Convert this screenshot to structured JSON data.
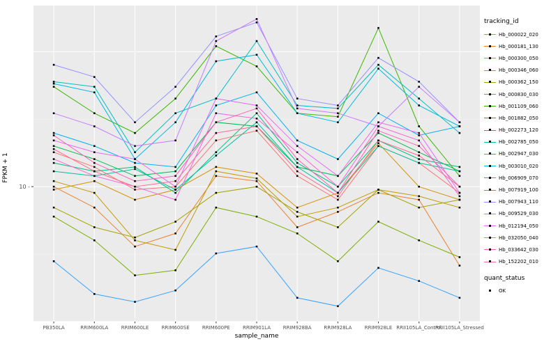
{
  "figure": {
    "x_axis_title": "sample_name",
    "y_axis_title": "FPKM + 1"
  },
  "legend": {
    "tracking_id_title": "tracking_id",
    "quant_status_title": "quant_status",
    "quant_status_items": [
      {
        "label": "OK",
        "shape": "black-square"
      }
    ]
  },
  "chart_data": {
    "type": "line",
    "title": "",
    "xlabel": "sample_name",
    "ylabel": "FPKM + 1",
    "y_scale": "log10",
    "ylim": [
      1,
      220
    ],
    "y_ticks": [
      10
    ],
    "major_gridlines": [
      1,
      10,
      100
    ],
    "minor_gridlines": [
      3.162,
      31.62
    ],
    "grid": true,
    "panel_bg": "#EBEBEB",
    "grid_color": "#FFFFFF",
    "point_color": "#000000",
    "legend_position": "right",
    "categories": [
      "PB350LA",
      "RRIM600LA",
      "RRIM600LE",
      "RRIM600SE",
      "RRIM600PE",
      "RRIM901LA",
      "RRIM928BA",
      "RRIM928LA",
      "RRIM928LE",
      "RRII105LA_Control",
      "RRII105LA_Stressed"
    ],
    "series": [
      {
        "name": "Hb_000022_020",
        "color": "#F8766D",
        "values": [
          18,
          14,
          9.5,
          10,
          22,
          26,
          12,
          8,
          20,
          15,
          9
        ]
      },
      {
        "name": "Hb_000181_130",
        "color": "#EA8331",
        "values": [
          10,
          7,
          3.6,
          4.5,
          12,
          11,
          5,
          6.5,
          9,
          8,
          2.6
        ]
      },
      {
        "name": "Hb_000300_050",
        "color": "#D89000",
        "values": [
          9.5,
          11,
          8,
          9.5,
          14,
          12.5,
          7,
          9,
          21,
          10,
          8
        ]
      },
      {
        "name": "Hb_000346_060",
        "color": "#C09B00",
        "values": [
          11,
          9,
          4,
          3.4,
          13,
          11.5,
          6,
          7,
          9.5,
          8.5,
          7
        ]
      },
      {
        "name": "Hb_000362_150",
        "color": "#A3A500",
        "values": [
          7,
          5,
          4.2,
          5.5,
          9,
          10,
          6.5,
          5,
          9.5,
          7,
          8
        ]
      },
      {
        "name": "Hb_000830_030",
        "color": "#7CAE00",
        "values": [
          6,
          4,
          2.2,
          2.4,
          7,
          6,
          4.5,
          2.8,
          5.5,
          4,
          3
        ]
      },
      {
        "name": "Hb_001109_060",
        "color": "#39B600",
        "values": [
          55,
          35,
          25,
          45,
          110,
          78,
          35,
          33,
          150,
          28,
          12
        ]
      },
      {
        "name": "Hb_001882_050",
        "color": "#00BB4E",
        "values": [
          20,
          16,
          12,
          13,
          30,
          28,
          14,
          12,
          25,
          18,
          13
        ]
      },
      {
        "name": "Hb_002273_120",
        "color": "#00BF7D",
        "values": [
          15,
          13,
          14,
          9,
          18,
          35,
          15,
          10,
          22,
          16,
          14
        ]
      },
      {
        "name": "Hb_002785_050",
        "color": "#00C1A3",
        "values": [
          13,
          12,
          13.5,
          9.5,
          17,
          30,
          14,
          9,
          20,
          15,
          13
        ]
      },
      {
        "name": "Hb_002947_030",
        "color": "#00BFC4",
        "values": [
          60,
          55,
          18,
          35,
          45,
          120,
          40,
          38,
          80,
          45,
          25
        ]
      },
      {
        "name": "Hb_003010_020",
        "color": "#00BAE0",
        "values": [
          58,
          50,
          16,
          30,
          85,
          95,
          35,
          30,
          75,
          40,
          28
        ]
      },
      {
        "name": "Hb_006909_070",
        "color": "#00B0F6",
        "values": [
          25,
          20,
          15,
          14,
          40,
          50,
          22,
          16,
          35,
          24,
          28
        ]
      },
      {
        "name": "Hb_007919_100",
        "color": "#35A2FF",
        "values": [
          2.8,
          1.6,
          1.4,
          1.7,
          3.2,
          3.6,
          1.5,
          1.3,
          2.5,
          2,
          1.5
        ]
      },
      {
        "name": "Hb_007943_110",
        "color": "#9590FF",
        "values": [
          80,
          65,
          30,
          55,
          130,
          165,
          45,
          40,
          90,
          60,
          30
        ]
      },
      {
        "name": "Hb_009529_030",
        "color": "#C77CFF",
        "values": [
          35,
          28,
          20,
          22,
          120,
          175,
          38,
          35,
          28,
          55,
          30
        ]
      },
      {
        "name": "Hb_012194_050",
        "color": "#E76BF3",
        "values": [
          22,
          18,
          16,
          10,
          45,
          40,
          20,
          12,
          30,
          25,
          9
        ]
      },
      {
        "name": "Hb_032050_040",
        "color": "#FA62DB",
        "values": [
          16,
          12,
          10,
          8,
          35,
          32,
          18,
          10,
          28,
          22,
          8.5
        ]
      },
      {
        "name": "Hb_033642_030",
        "color": "#FF62BC",
        "values": [
          24,
          15,
          11,
          12,
          30,
          38,
          16,
          9,
          26,
          20,
          10
        ]
      },
      {
        "name": "Hb_152202_010",
        "color": "#FF6A98",
        "values": [
          19,
          13,
          10,
          11,
          25,
          28,
          13,
          8.5,
          22,
          17,
          10
        ]
      }
    ]
  }
}
